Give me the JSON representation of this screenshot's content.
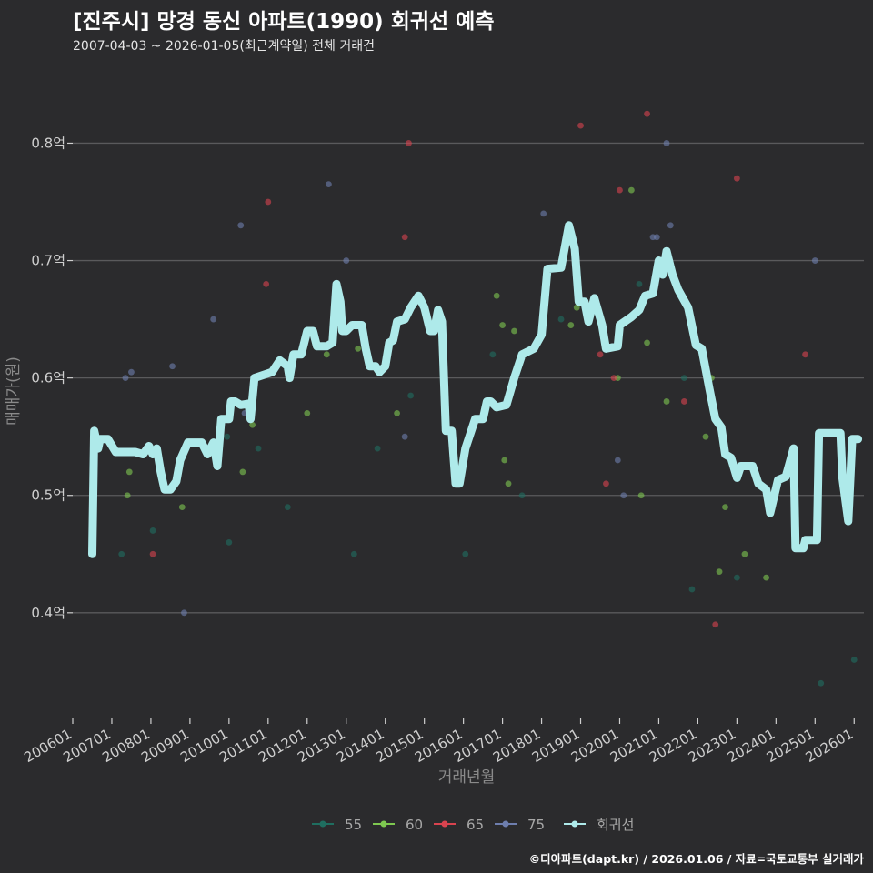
{
  "header": {
    "title": "[진주시] 망경 동신 아파트(1990) 회귀선 예측",
    "subtitle": "2007-04-03 ~ 2026-01-05(최근계약일) 전체 거래건"
  },
  "footer": {
    "credit": "©디아파트(dapt.kr) / 2026.01.06 / 자료=국토교통부 실거래가"
  },
  "colors": {
    "background": "#2b2b2d",
    "grid": "#5a5a5c",
    "s55": "#1f6e60",
    "s60": "#7ec850",
    "s65": "#d9434f",
    "s75": "#6e7eae",
    "regression": "#aeeaea"
  },
  "chart_data": {
    "type": "scatter",
    "title": "[진주시] 망경 동신 아파트(1990) 회귀선 예측",
    "xlabel": "거래년월",
    "ylabel": "매매가(원)",
    "ylim": [
      0.31,
      0.86
    ],
    "xlim": [
      2006.0,
      2026.25
    ],
    "y_ticks": [
      {
        "value": 0.4,
        "label": "0.4억"
      },
      {
        "value": 0.5,
        "label": "0.5억"
      },
      {
        "value": 0.6,
        "label": "0.6억"
      },
      {
        "value": 0.7,
        "label": "0.7억"
      },
      {
        "value": 0.8,
        "label": "0.8억"
      }
    ],
    "x_ticks": [
      "200601",
      "200701",
      "200801",
      "200901",
      "201001",
      "201101",
      "201201",
      "201301",
      "201401",
      "201501",
      "201601",
      "201701",
      "201801",
      "201901",
      "202001",
      "202101",
      "202201",
      "202301",
      "202401",
      "202501",
      "202601"
    ],
    "legend": {
      "position": "bottom",
      "items": [
        {
          "label": "55",
          "key": "s55"
        },
        {
          "label": "60",
          "key": "s60"
        },
        {
          "label": "65",
          "key": "s65"
        },
        {
          "label": "75",
          "key": "s75"
        },
        {
          "label": "회귀선",
          "key": "regression"
        }
      ]
    },
    "series": [
      {
        "name": "55",
        "points": [
          [
            2007.25,
            0.45
          ],
          [
            2008.05,
            0.47
          ],
          [
            2009.95,
            0.55
          ],
          [
            2010.0,
            0.46
          ],
          [
            2010.75,
            0.54
          ],
          [
            2011.5,
            0.49
          ],
          [
            2013.2,
            0.45
          ],
          [
            2013.8,
            0.54
          ],
          [
            2014.65,
            0.585
          ],
          [
            2016.05,
            0.45
          ],
          [
            2016.75,
            0.62
          ],
          [
            2017.5,
            0.5
          ],
          [
            2018.5,
            0.65
          ],
          [
            2019.2,
            0.66
          ],
          [
            2020.5,
            0.68
          ],
          [
            2021.65,
            0.6
          ],
          [
            2021.85,
            0.42
          ],
          [
            2023.0,
            0.43
          ],
          [
            2025.15,
            0.34
          ],
          [
            2026.0,
            0.36
          ]
        ]
      },
      {
        "name": "60",
        "points": [
          [
            2007.4,
            0.5
          ],
          [
            2007.45,
            0.52
          ],
          [
            2008.8,
            0.49
          ],
          [
            2010.35,
            0.52
          ],
          [
            2010.6,
            0.56
          ],
          [
            2012.0,
            0.57
          ],
          [
            2012.5,
            0.62
          ],
          [
            2013.3,
            0.625
          ],
          [
            2014.3,
            0.57
          ],
          [
            2016.85,
            0.67
          ],
          [
            2017.0,
            0.645
          ],
          [
            2017.05,
            0.53
          ],
          [
            2017.15,
            0.51
          ],
          [
            2017.3,
            0.64
          ],
          [
            2018.75,
            0.645
          ],
          [
            2018.9,
            0.66
          ],
          [
            2019.95,
            0.6
          ],
          [
            2020.3,
            0.76
          ],
          [
            2020.55,
            0.5
          ],
          [
            2020.7,
            0.63
          ],
          [
            2021.2,
            0.58
          ],
          [
            2022.2,
            0.55
          ],
          [
            2022.35,
            0.6
          ],
          [
            2022.55,
            0.435
          ],
          [
            2022.7,
            0.49
          ],
          [
            2023.2,
            0.45
          ],
          [
            2023.75,
            0.43
          ]
        ]
      },
      {
        "name": "65",
        "points": [
          [
            2008.05,
            0.45
          ],
          [
            2010.95,
            0.68
          ],
          [
            2011.0,
            0.75
          ],
          [
            2014.5,
            0.72
          ],
          [
            2014.6,
            0.8
          ],
          [
            2019.5,
            0.62
          ],
          [
            2019.65,
            0.51
          ],
          [
            2019.0,
            0.815
          ],
          [
            2019.85,
            0.6
          ],
          [
            2020.0,
            0.76
          ],
          [
            2020.7,
            0.825
          ],
          [
            2021.65,
            0.58
          ],
          [
            2022.45,
            0.39
          ],
          [
            2023.0,
            0.77
          ],
          [
            2024.75,
            0.62
          ]
        ]
      },
      {
        "name": "75",
        "points": [
          [
            2007.35,
            0.6
          ],
          [
            2007.5,
            0.605
          ],
          [
            2008.55,
            0.61
          ],
          [
            2008.85,
            0.4
          ],
          [
            2009.6,
            0.65
          ],
          [
            2010.3,
            0.73
          ],
          [
            2010.4,
            0.57
          ],
          [
            2012.55,
            0.765
          ],
          [
            2013.0,
            0.7
          ],
          [
            2014.5,
            0.55
          ],
          [
            2018.05,
            0.74
          ],
          [
            2019.95,
            0.53
          ],
          [
            2020.1,
            0.5
          ],
          [
            2020.85,
            0.72
          ],
          [
            2020.95,
            0.72
          ],
          [
            2021.2,
            0.8
          ],
          [
            2021.3,
            0.73
          ],
          [
            2025.0,
            0.7
          ]
        ]
      },
      {
        "name": "회귀선",
        "points": [
          [
            2006.5,
            0.45
          ],
          [
            2006.55,
            0.555
          ],
          [
            2006.65,
            0.54
          ],
          [
            2006.7,
            0.548
          ],
          [
            2006.9,
            0.548
          ],
          [
            2007.1,
            0.537
          ],
          [
            2007.6,
            0.537
          ],
          [
            2007.8,
            0.535
          ],
          [
            2007.95,
            0.542
          ],
          [
            2008.05,
            0.535
          ],
          [
            2008.15,
            0.54
          ],
          [
            2008.25,
            0.52
          ],
          [
            2008.35,
            0.505
          ],
          [
            2008.5,
            0.505
          ],
          [
            2008.65,
            0.512
          ],
          [
            2008.75,
            0.53
          ],
          [
            2008.95,
            0.545
          ],
          [
            2009.3,
            0.545
          ],
          [
            2009.45,
            0.535
          ],
          [
            2009.6,
            0.545
          ],
          [
            2009.7,
            0.525
          ],
          [
            2009.8,
            0.565
          ],
          [
            2010.0,
            0.565
          ],
          [
            2010.05,
            0.58
          ],
          [
            2010.15,
            0.58
          ],
          [
            2010.3,
            0.577
          ],
          [
            2010.5,
            0.578
          ],
          [
            2010.55,
            0.565
          ],
          [
            2010.65,
            0.6
          ],
          [
            2011.1,
            0.605
          ],
          [
            2011.3,
            0.615
          ],
          [
            2011.5,
            0.61
          ],
          [
            2011.55,
            0.6
          ],
          [
            2011.65,
            0.62
          ],
          [
            2011.85,
            0.62
          ],
          [
            2012.0,
            0.64
          ],
          [
            2012.15,
            0.64
          ],
          [
            2012.25,
            0.627
          ],
          [
            2012.5,
            0.627
          ],
          [
            2012.65,
            0.63
          ],
          [
            2012.75,
            0.68
          ],
          [
            2012.85,
            0.665
          ],
          [
            2012.9,
            0.64
          ],
          [
            2013.0,
            0.64
          ],
          [
            2013.15,
            0.645
          ],
          [
            2013.4,
            0.645
          ],
          [
            2013.5,
            0.625
          ],
          [
            2013.6,
            0.61
          ],
          [
            2013.75,
            0.61
          ],
          [
            2013.85,
            0.605
          ],
          [
            2014.0,
            0.61
          ],
          [
            2014.1,
            0.63
          ],
          [
            2014.2,
            0.632
          ],
          [
            2014.3,
            0.648
          ],
          [
            2014.5,
            0.65
          ],
          [
            2014.65,
            0.66
          ],
          [
            2014.85,
            0.67
          ],
          [
            2015.0,
            0.66
          ],
          [
            2015.15,
            0.64
          ],
          [
            2015.25,
            0.64
          ],
          [
            2015.35,
            0.658
          ],
          [
            2015.45,
            0.648
          ],
          [
            2015.55,
            0.555
          ],
          [
            2015.7,
            0.555
          ],
          [
            2015.8,
            0.51
          ],
          [
            2015.9,
            0.51
          ],
          [
            2016.05,
            0.54
          ],
          [
            2016.3,
            0.565
          ],
          [
            2016.5,
            0.565
          ],
          [
            2016.6,
            0.58
          ],
          [
            2016.7,
            0.58
          ],
          [
            2016.85,
            0.575
          ],
          [
            2017.1,
            0.577
          ],
          [
            2017.3,
            0.6
          ],
          [
            2017.5,
            0.62
          ],
          [
            2017.8,
            0.625
          ],
          [
            2018.0,
            0.637
          ],
          [
            2018.15,
            0.693
          ],
          [
            2018.5,
            0.694
          ],
          [
            2018.7,
            0.73
          ],
          [
            2018.85,
            0.71
          ],
          [
            2018.95,
            0.665
          ],
          [
            2019.1,
            0.665
          ],
          [
            2019.2,
            0.648
          ],
          [
            2019.35,
            0.668
          ],
          [
            2019.55,
            0.645
          ],
          [
            2019.65,
            0.625
          ],
          [
            2019.95,
            0.627
          ],
          [
            2020.0,
            0.645
          ],
          [
            2020.3,
            0.652
          ],
          [
            2020.5,
            0.658
          ],
          [
            2020.65,
            0.67
          ],
          [
            2020.85,
            0.672
          ],
          [
            2021.0,
            0.7
          ],
          [
            2021.1,
            0.688
          ],
          [
            2021.2,
            0.708
          ],
          [
            2021.35,
            0.688
          ],
          [
            2021.5,
            0.675
          ],
          [
            2021.75,
            0.66
          ],
          [
            2021.95,
            0.628
          ],
          [
            2022.1,
            0.625
          ],
          [
            2022.3,
            0.59
          ],
          [
            2022.45,
            0.565
          ],
          [
            2022.6,
            0.558
          ],
          [
            2022.7,
            0.535
          ],
          [
            2022.85,
            0.532
          ],
          [
            2023.0,
            0.515
          ],
          [
            2023.1,
            0.525
          ],
          [
            2023.4,
            0.525
          ],
          [
            2023.55,
            0.51
          ],
          [
            2023.75,
            0.505
          ],
          [
            2023.85,
            0.485
          ],
          [
            2024.05,
            0.513
          ],
          [
            2024.25,
            0.516
          ],
          [
            2024.45,
            0.54
          ],
          [
            2024.5,
            0.455
          ],
          [
            2024.7,
            0.455
          ],
          [
            2024.75,
            0.462
          ],
          [
            2025.05,
            0.462
          ],
          [
            2025.1,
            0.553
          ],
          [
            2025.65,
            0.553
          ],
          [
            2025.7,
            0.515
          ],
          [
            2025.85,
            0.478
          ],
          [
            2025.95,
            0.548
          ],
          [
            2026.1,
            0.548
          ]
        ]
      }
    ]
  }
}
